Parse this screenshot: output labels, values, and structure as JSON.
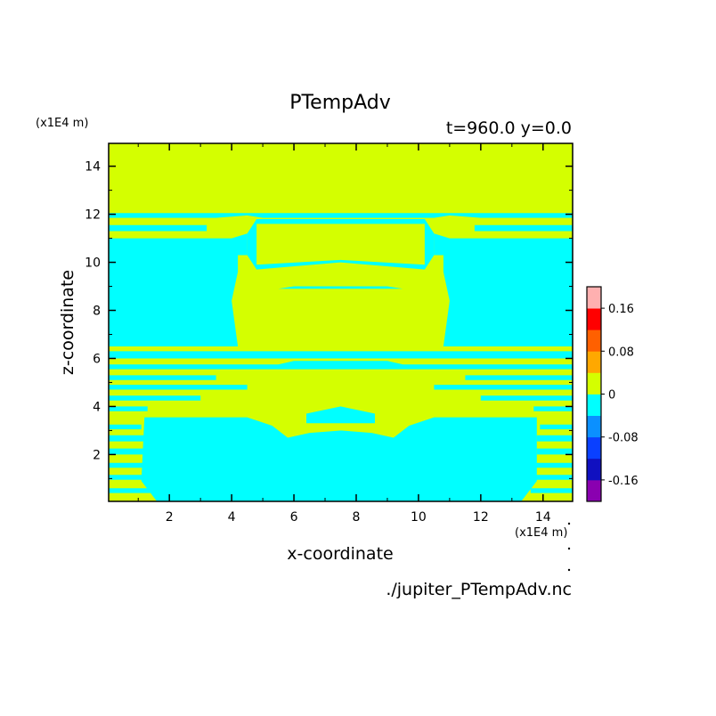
{
  "chart_data": {
    "type": "heatmap",
    "title": "PTempAdv",
    "subtitle": "t=960.0 y=0.0",
    "xlabel": "x-coordinate",
    "ylabel": "z-coordinate",
    "x_unit": "(x1E4 m)",
    "y_unit": "(x1E4 m)",
    "source_file": "./jupiter_PTempAdv.nc",
    "xlim": [
      0.05,
      14.95
    ],
    "ylim": [
      0.05,
      14.95
    ],
    "x_ticks": [
      2,
      4,
      6,
      8,
      10,
      12,
      14
    ],
    "y_ticks": [
      2,
      4,
      6,
      8,
      10,
      12,
      14
    ],
    "x_tick_labels": [
      "2",
      "4",
      "6",
      "8",
      "10",
      "12",
      "14"
    ],
    "y_tick_labels": [
      "2",
      "4",
      "6",
      "8",
      "10",
      "12",
      "14"
    ],
    "colorbar": {
      "levels": [
        -0.2,
        -0.16,
        -0.12,
        -0.08,
        -0.04,
        0,
        0.04,
        0.08,
        0.12,
        0.16,
        0.2
      ],
      "colors": [
        "#8a00b0",
        "#1010c0",
        "#0a40ff",
        "#0b90ff",
        "#00ffff",
        "#d4ff00",
        "#ffa800",
        "#ff6000",
        "#ff0000",
        "#ffb0b0"
      ],
      "tick_values": [
        -0.16,
        -0.08,
        0,
        0.08,
        0.16
      ],
      "tick_labels": [
        "-0.16",
        "-0.08",
        "0",
        "0.08",
        "0.16"
      ]
    },
    "regions": [
      {
        "level": 0.02,
        "note": "background",
        "points": [
          [
            0.05,
            0.05
          ],
          [
            14.95,
            0.05
          ],
          [
            14.95,
            14.95
          ],
          [
            0.05,
            14.95
          ]
        ]
      },
      {
        "level": -0.02,
        "points": [
          [
            0.05,
            12.05
          ],
          [
            14.95,
            12.05
          ],
          [
            14.95,
            11.85
          ],
          [
            12,
            11.85
          ],
          [
            11,
            11.95
          ],
          [
            10.5,
            11.85
          ],
          [
            5,
            11.85
          ],
          [
            4.5,
            11.95
          ],
          [
            3.5,
            11.85
          ],
          [
            0.05,
            11.85
          ]
        ]
      },
      {
        "level": -0.02,
        "points": [
          [
            0.05,
            11.55
          ],
          [
            3.2,
            11.55
          ],
          [
            3.2,
            11.3
          ],
          [
            0.05,
            11.3
          ]
        ]
      },
      {
        "level": -0.02,
        "points": [
          [
            11.8,
            11.55
          ],
          [
            14.95,
            11.55
          ],
          [
            14.95,
            11.3
          ],
          [
            11.8,
            11.3
          ]
        ]
      },
      {
        "level": -0.02,
        "points": [
          [
            0.05,
            11.0
          ],
          [
            4.0,
            11.0
          ],
          [
            4.5,
            11.2
          ],
          [
            4.5,
            10.3
          ],
          [
            4.2,
            10.3
          ],
          [
            4.2,
            9.6
          ],
          [
            4.0,
            8.4
          ],
          [
            4.2,
            6.5
          ],
          [
            0.05,
            6.5
          ]
        ]
      },
      {
        "level": -0.02,
        "points": [
          [
            14.95,
            11.0
          ],
          [
            11.0,
            11.0
          ],
          [
            10.5,
            11.2
          ],
          [
            10.5,
            10.3
          ],
          [
            10.8,
            10.3
          ],
          [
            10.8,
            9.6
          ],
          [
            11.0,
            8.4
          ],
          [
            10.8,
            6.5
          ],
          [
            14.95,
            6.5
          ]
        ]
      },
      {
        "level": -0.02,
        "points": [
          [
            4.5,
            11.2
          ],
          [
            4.8,
            11.8
          ],
          [
            10.2,
            11.8
          ],
          [
            10.5,
            11.2
          ],
          [
            10.5,
            10.3
          ],
          [
            10.2,
            9.7
          ],
          [
            7.5,
            10.0
          ],
          [
            4.8,
            9.7
          ],
          [
            4.5,
            10.3
          ]
        ]
      },
      {
        "level": 0.02,
        "points": [
          [
            4.8,
            11.6
          ],
          [
            10.2,
            11.6
          ],
          [
            10.2,
            9.9
          ],
          [
            7.5,
            10.1
          ],
          [
            4.8,
            9.9
          ]
        ]
      },
      {
        "level": -0.02,
        "points": [
          [
            6,
            9.0
          ],
          [
            9,
            9.0
          ],
          [
            9.5,
            8.9
          ],
          [
            5.5,
            8.9
          ]
        ]
      },
      {
        "level": -0.02,
        "points": [
          [
            0.05,
            6.3
          ],
          [
            14.95,
            6.3
          ],
          [
            14.95,
            6.0
          ],
          [
            0.05,
            6.0
          ]
        ]
      },
      {
        "level": -0.02,
        "points": [
          [
            0.05,
            5.75
          ],
          [
            5.5,
            5.75
          ],
          [
            6.0,
            5.9
          ],
          [
            9.0,
            5.9
          ],
          [
            9.5,
            5.75
          ],
          [
            14.95,
            5.75
          ],
          [
            14.95,
            5.55
          ],
          [
            0.05,
            5.55
          ]
        ]
      },
      {
        "level": -0.02,
        "points": [
          [
            0.05,
            5.3
          ],
          [
            3.5,
            5.3
          ],
          [
            3.5,
            5.1
          ],
          [
            0.05,
            5.1
          ]
        ]
      },
      {
        "level": -0.02,
        "points": [
          [
            11.5,
            5.3
          ],
          [
            14.95,
            5.3
          ],
          [
            14.95,
            5.1
          ],
          [
            11.5,
            5.1
          ]
        ]
      },
      {
        "level": -0.02,
        "points": [
          [
            0.05,
            4.9
          ],
          [
            4.5,
            4.9
          ],
          [
            4.5,
            4.7
          ],
          [
            0.05,
            4.7
          ]
        ]
      },
      {
        "level": -0.02,
        "points": [
          [
            10.5,
            4.9
          ],
          [
            14.95,
            4.9
          ],
          [
            14.95,
            4.7
          ],
          [
            10.5,
            4.7
          ]
        ]
      },
      {
        "level": -0.02,
        "points": [
          [
            0.05,
            4.45
          ],
          [
            3.0,
            4.45
          ],
          [
            3.0,
            4.25
          ],
          [
            0.05,
            4.25
          ]
        ]
      },
      {
        "level": -0.02,
        "points": [
          [
            12.0,
            4.45
          ],
          [
            14.95,
            4.45
          ],
          [
            14.95,
            4.25
          ],
          [
            12.0,
            4.25
          ]
        ]
      },
      {
        "level": -0.02,
        "points": [
          [
            0.05,
            4.0
          ],
          [
            1.3,
            4.0
          ],
          [
            1.3,
            3.8
          ],
          [
            0.05,
            3.8
          ]
        ]
      },
      {
        "level": -0.02,
        "points": [
          [
            13.7,
            4.0
          ],
          [
            14.95,
            4.0
          ],
          [
            14.95,
            3.8
          ],
          [
            13.7,
            3.8
          ]
        ]
      },
      {
        "level": -0.02,
        "points": [
          [
            1.2,
            3.55
          ],
          [
            4.5,
            3.55
          ],
          [
            5.3,
            3.2
          ],
          [
            5.8,
            2.7
          ],
          [
            6.5,
            2.9
          ],
          [
            7.5,
            3.0
          ],
          [
            8.5,
            2.9
          ],
          [
            9.2,
            2.7
          ],
          [
            9.7,
            3.2
          ],
          [
            10.5,
            3.55
          ],
          [
            13.8,
            3.55
          ],
          [
            13.8,
            0.9
          ],
          [
            13.3,
            0.05
          ],
          [
            1.6,
            0.05
          ],
          [
            1.1,
            0.9
          ]
        ]
      },
      {
        "level": 0.02,
        "points": [
          [
            6.2,
            3.4
          ],
          [
            7.5,
            3.6
          ],
          [
            8.8,
            3.4
          ],
          [
            8.7,
            3.0
          ],
          [
            6.3,
            3.0
          ]
        ]
      },
      {
        "level": -0.02,
        "points": [
          [
            6.4,
            3.7
          ],
          [
            7.5,
            4.0
          ],
          [
            8.6,
            3.7
          ],
          [
            8.6,
            3.3
          ],
          [
            6.4,
            3.3
          ]
        ]
      },
      {
        "level": -0.02,
        "points": [
          [
            0.05,
            3.25
          ],
          [
            1.1,
            3.25
          ],
          [
            1.1,
            3.05
          ],
          [
            0.05,
            3.05
          ]
        ]
      },
      {
        "level": -0.02,
        "points": [
          [
            13.9,
            3.25
          ],
          [
            14.95,
            3.25
          ],
          [
            14.95,
            3.05
          ],
          [
            13.9,
            3.05
          ]
        ]
      },
      {
        "level": -0.02,
        "points": [
          [
            0.05,
            2.8
          ],
          [
            1.2,
            2.8
          ],
          [
            1.2,
            2.55
          ],
          [
            0.05,
            2.55
          ]
        ]
      },
      {
        "level": -0.02,
        "points": [
          [
            13.8,
            2.8
          ],
          [
            14.95,
            2.8
          ],
          [
            14.95,
            2.55
          ],
          [
            13.8,
            2.55
          ]
        ]
      },
      {
        "level": -0.02,
        "points": [
          [
            0.05,
            2.25
          ],
          [
            1.2,
            2.25
          ],
          [
            1.2,
            2.0
          ],
          [
            0.05,
            2.0
          ]
        ]
      },
      {
        "level": -0.02,
        "points": [
          [
            13.8,
            2.25
          ],
          [
            14.95,
            2.25
          ],
          [
            14.95,
            2.0
          ],
          [
            13.8,
            2.0
          ]
        ]
      },
      {
        "level": -0.02,
        "points": [
          [
            0.05,
            1.65
          ],
          [
            1.3,
            1.65
          ],
          [
            1.3,
            1.45
          ],
          [
            0.05,
            1.45
          ]
        ]
      },
      {
        "level": -0.02,
        "points": [
          [
            13.7,
            1.65
          ],
          [
            14.95,
            1.65
          ],
          [
            14.95,
            1.45
          ],
          [
            13.7,
            1.45
          ]
        ]
      },
      {
        "level": -0.02,
        "points": [
          [
            0.05,
            1.15
          ],
          [
            1.3,
            1.15
          ],
          [
            1.3,
            0.95
          ],
          [
            0.05,
            0.95
          ]
        ]
      },
      {
        "level": -0.02,
        "points": [
          [
            13.7,
            1.15
          ],
          [
            14.95,
            1.15
          ],
          [
            14.95,
            0.95
          ],
          [
            13.7,
            0.95
          ]
        ]
      },
      {
        "level": -0.02,
        "points": [
          [
            0.05,
            0.6
          ],
          [
            1.4,
            0.6
          ],
          [
            1.4,
            0.4
          ],
          [
            0.05,
            0.4
          ]
        ]
      },
      {
        "level": -0.02,
        "points": [
          [
            13.6,
            0.6
          ],
          [
            14.95,
            0.6
          ],
          [
            14.95,
            0.4
          ],
          [
            13.6,
            0.4
          ]
        ]
      }
    ]
  }
}
